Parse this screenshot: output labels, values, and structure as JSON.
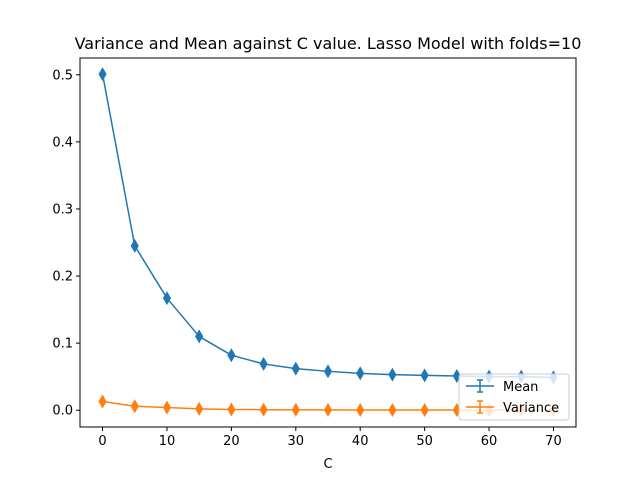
{
  "chart_data": {
    "type": "line",
    "title": "Variance and Mean against C value. Lasso Model with folds=10",
    "xlabel": "C",
    "ylabel": "",
    "xlim": [
      -3.5,
      73.5
    ],
    "ylim": [
      -0.025,
      0.525
    ],
    "xticks": [
      0,
      10,
      20,
      30,
      40,
      50,
      60,
      70
    ],
    "yticks": [
      0.0,
      0.1,
      0.2,
      0.3,
      0.4,
      0.5
    ],
    "ytick_labels": [
      "0.0",
      "0.1",
      "0.2",
      "0.3",
      "0.4",
      "0.5"
    ],
    "grid": false,
    "legend_position": "lower-right",
    "x": [
      0,
      5,
      10,
      15,
      20,
      25,
      30,
      35,
      40,
      45,
      50,
      55,
      60,
      65,
      70
    ],
    "series": [
      {
        "name": "Mean",
        "color": "#1f77b4",
        "marker": "thin-diamond",
        "values": [
          0.501,
          0.245,
          0.167,
          0.11,
          0.082,
          0.069,
          0.062,
          0.058,
          0.055,
          0.053,
          0.052,
          0.051,
          0.05,
          0.05,
          0.049
        ]
      },
      {
        "name": "Variance",
        "color": "#ff7f0e",
        "marker": "thin-diamond",
        "values": [
          0.013,
          0.006,
          0.004,
          0.002,
          0.001,
          0.0008,
          0.0006,
          0.0005,
          0.0004,
          0.0003,
          0.0003,
          0.0003,
          0.0002,
          0.0002,
          0.0002
        ]
      }
    ]
  }
}
